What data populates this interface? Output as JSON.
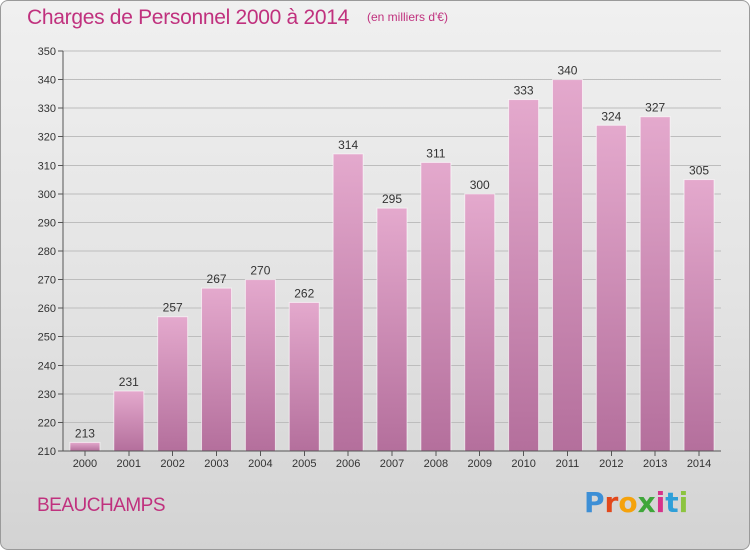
{
  "header": {
    "title": "Charges de Personnel 2000 à 2014",
    "subtitle": "(en milliers d'€)"
  },
  "footer": {
    "commune": "BEAUCHAMPS",
    "logo": "Proxiti"
  },
  "colors": {
    "title": "#c0317e",
    "bar_top": "#e4a9cd",
    "bar_bottom": "#b46f9c",
    "background_top": "#f0f0f0",
    "background_bottom": "#d3d3d3"
  },
  "chart_data": {
    "type": "bar",
    "title": "Charges de Personnel 2000 à 2014",
    "subtitle": "(en milliers d'€)",
    "categories": [
      "2000",
      "2001",
      "2002",
      "2003",
      "2004",
      "2005",
      "2006",
      "2007",
      "2008",
      "2009",
      "2010",
      "2011",
      "2012",
      "2013",
      "2014"
    ],
    "values": [
      213,
      231,
      257,
      267,
      270,
      262,
      314,
      295,
      311,
      300,
      333,
      340,
      324,
      327,
      305
    ],
    "ylim": [
      210,
      350
    ],
    "yticks": [
      210,
      220,
      230,
      240,
      250,
      260,
      270,
      280,
      290,
      300,
      310,
      320,
      330,
      340,
      350
    ],
    "xlabel": "",
    "ylabel": "",
    "grid": true,
    "data_labels": true
  }
}
